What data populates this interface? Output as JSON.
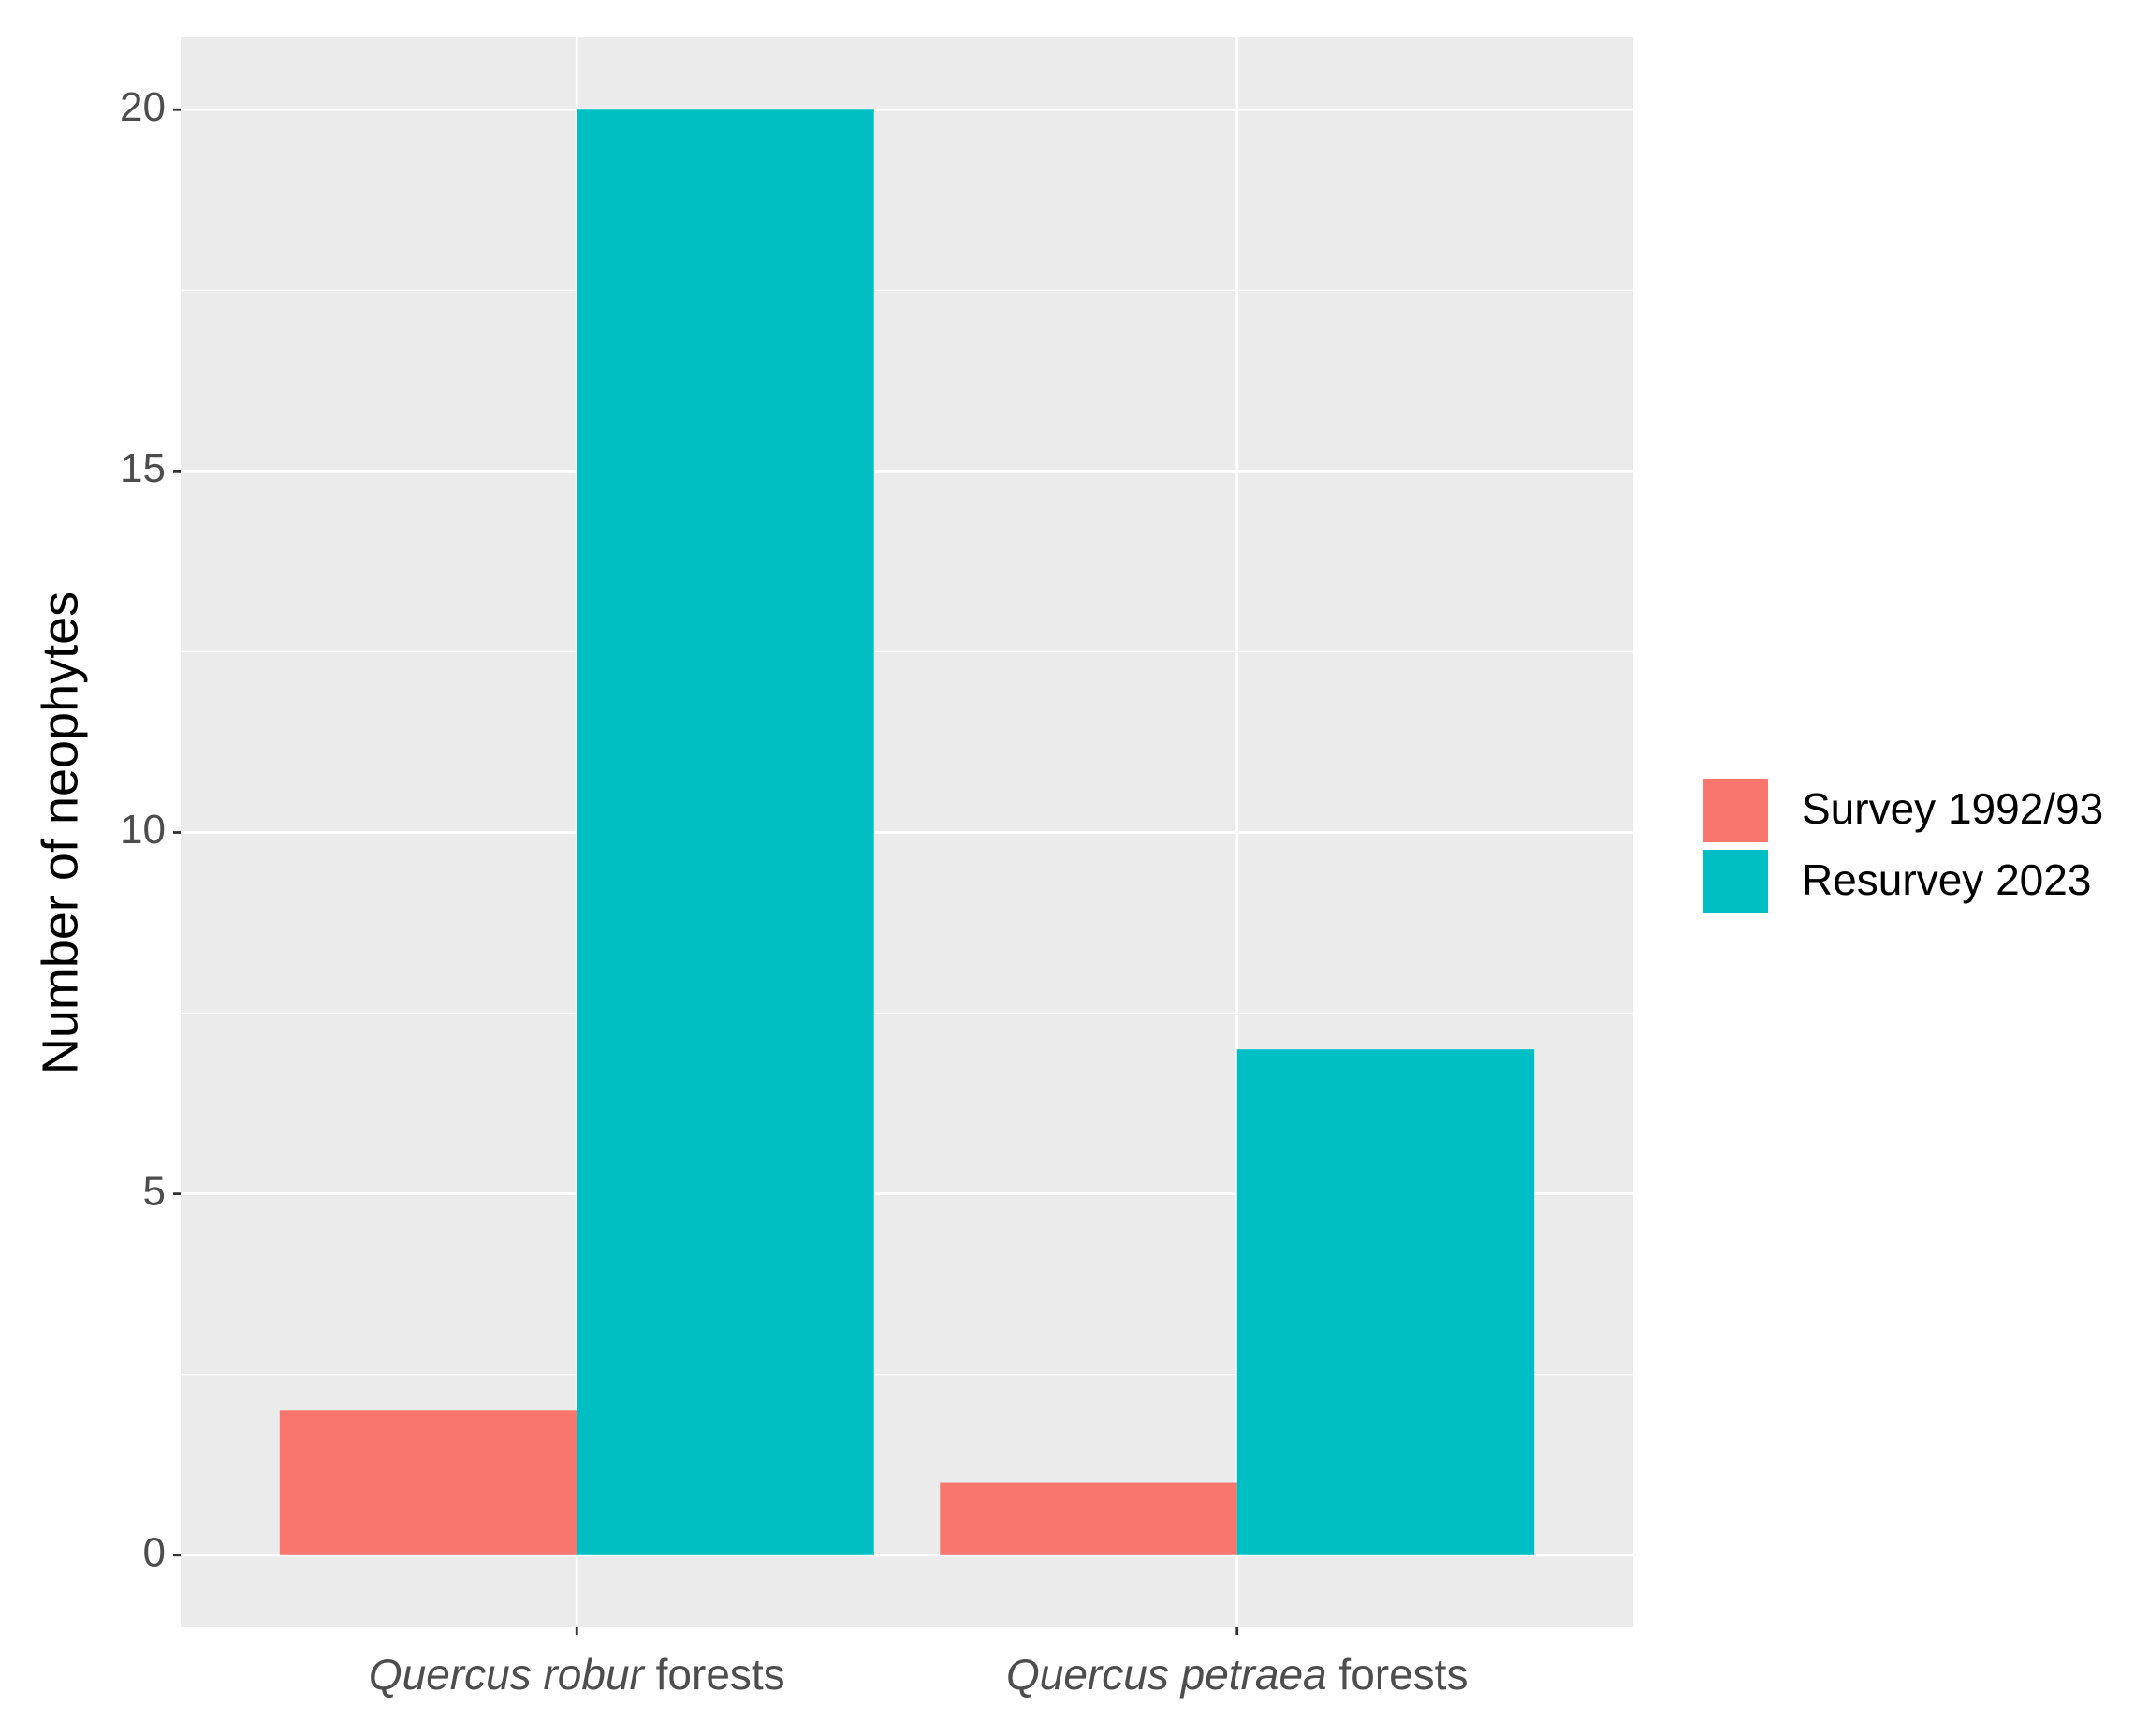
{
  "chart_data": {
    "type": "bar",
    "y_label": "Number of neophytes",
    "categories": [
      "Quercus robur forests",
      "Quercus petraea forests"
    ],
    "series": [
      {
        "name": "Survey 1992/93",
        "color": "#F8766D",
        "values": [
          2,
          1
        ]
      },
      {
        "name": "Resurvey 2023",
        "color": "#00BFC4",
        "values": [
          20,
          7
        ]
      }
    ],
    "ylim": [
      -1,
      21
    ],
    "yticks": [
      0,
      5,
      10,
      15,
      20
    ],
    "minor_yticks": [
      2.5,
      7.5,
      12.5,
      17.5
    ],
    "grid": true,
    "legend_position": "right"
  }
}
